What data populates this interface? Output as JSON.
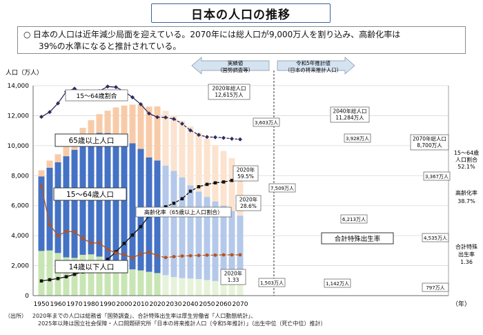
{
  "page": {
    "title": "日本の人口の推移",
    "summary_bullet": "○",
    "summary_line1": "日本の人口は近年減少局面を迎えている。2070年には総人口が9,000万人を割り込み、高齢化率は",
    "summary_line2": "39%の水準になると推計されている。",
    "source_tag": "（出所）",
    "source_line1": "2020年までの人口は総務省「国勢調査」、合計特殊出生率は厚生労働省「人口動態統計」、",
    "source_line2": "2025年以降は国立社会保障・人口問題研究所「日本の将来推計人口（令和5年推計）」（出生中位（死亡中位）推計）"
  },
  "colors": {
    "young": "#c8e6b4",
    "young_future": "#e6f3da",
    "working": "#4472c4",
    "working_future": "#b4c8ea",
    "elderly": "#f8cba8",
    "elderly_future": "#fbe3cf",
    "working_ratio_line": "#2e2b5e",
    "aging_rate_line": "#111111",
    "tfr_line": "#b5531e",
    "arrow_fill": "#d5e3f0"
  },
  "chart_data": {
    "type": "bar",
    "subtype": "stacked bar with three line series",
    "ylabel": "人口（万人）",
    "xlabel_unit": "（年）",
    "ylim": [
      0,
      14000
    ],
    "yticks": [
      "0",
      "2,000",
      "4,000",
      "6,000",
      "8,000",
      "10,000",
      "12,000",
      "14,000"
    ],
    "xticks": [
      "1950",
      "1960",
      "1970",
      "1980",
      "1990",
      "2000",
      "2010",
      "2020",
      "2030",
      "2040",
      "2050",
      "2060",
      "2070"
    ],
    "x": [
      1950,
      1955,
      1960,
      1965,
      1970,
      1975,
      1980,
      1985,
      1990,
      1995,
      2000,
      2005,
      2010,
      2015,
      2020,
      2025,
      2030,
      2035,
      2040,
      2045,
      2050,
      2055,
      2060,
      2065,
      2070
    ],
    "projection_start": 2025,
    "series": [
      {
        "name": "14歳以下人口",
        "values": [
          2979,
          3012,
          2843,
          2553,
          2515,
          2722,
          2751,
          2603,
          2249,
          2001,
          1847,
          1752,
          1680,
          1589,
          1503,
          1363,
          1240,
          1169,
          1142,
          1103,
          1041,
          974,
          923,
          847,
          797
        ]
      },
      {
        "name": "15～64歳人口",
        "values": [
          4966,
          5517,
          6047,
          6744,
          7212,
          7581,
          7883,
          8251,
          8590,
          8716,
          8622,
          8409,
          8103,
          7629,
          7509,
          7310,
          7076,
          6722,
          6213,
          5832,
          5540,
          5307,
          5078,
          4809,
          4535
        ]
      },
      {
        "name": "65歳以上人口",
        "values": [
          411,
          475,
          535,
          618,
          733,
          887,
          1065,
          1247,
          1493,
          1828,
          2204,
          2576,
          2948,
          3387,
          3603,
          3653,
          3696,
          3773,
          3928,
          3945,
          3888,
          3756,
          3644,
          3513,
          3367
        ]
      }
    ],
    "line_series": [
      {
        "name": "15～64歳割合",
        "values": [
          59.6,
          61.2,
          64.1,
          68.0,
          69.0,
          67.7,
          67.4,
          68.2,
          69.7,
          69.5,
          68.1,
          66.1,
          63.8,
          60.7,
          59.5,
          59.4,
          58.9,
          57.3,
          55.1,
          53.6,
          52.9,
          52.8,
          52.6,
          52.3,
          52.1
        ]
      },
      {
        "name": "高齢化率（65歳以上人口割合）",
        "values": [
          4.9,
          5.3,
          5.7,
          6.3,
          7.1,
          7.9,
          9.1,
          10.3,
          12.1,
          14.6,
          17.4,
          20.2,
          23.0,
          26.6,
          28.6,
          29.6,
          30.8,
          32.3,
          34.8,
          36.3,
          37.1,
          37.6,
          37.9,
          38.4,
          38.7
        ]
      },
      {
        "name": "合計特殊出生率",
        "values": [
          3.65,
          2.37,
          2.0,
          2.14,
          2.13,
          1.91,
          1.75,
          1.76,
          1.54,
          1.42,
          1.36,
          1.26,
          1.39,
          1.45,
          1.33,
          1.27,
          1.3,
          1.32,
          1.33,
          1.34,
          1.35,
          1.35,
          1.36,
          1.36,
          1.36
        ]
      }
    ],
    "annotations": {
      "actual_label1": "実績値",
      "actual_label2": "（国勢調査等）",
      "proj_label1": "令和5年推計値",
      "proj_label2": "（日本の将来推計人口）",
      "total2020_1": "2020年総人口",
      "total2020_2": "12,615万人",
      "total2040_1": "2040年総人口",
      "total2040_2": "11,284万人",
      "total2070_1": "2070年総人口",
      "total2070_2": "8,700万人",
      "elderly2020": "3,603万人",
      "elderly2040": "3,928万人",
      "elderly2070": "3,367万人",
      "working2020": "7,509万人",
      "working2040": "6,213万人",
      "working2070": "4,535万人",
      "young2020": "1,503万人",
      "young2040": "1,142万人",
      "young2070": "797万人",
      "ratio2020_1": "2020年",
      "ratio2020_2": "59.5%",
      "aging2020_1": "2020年",
      "aging2020_2": "28.6%",
      "tfr2020_1": "2020年",
      "tfr2020_2": "1.33",
      "lbl_working_ratio": "15～64歳割合",
      "lbl_elderly": "65歳以上人口",
      "lbl_working": "15～64歳人口",
      "lbl_young": "14歳以下人口",
      "lbl_aging": "高齢化率（65歳以上人口割合）",
      "lbl_tfr": "合計特殊出生率",
      "r_ratio1": "15～64歳",
      "r_ratio2": "人口割合",
      "r_ratio3": "52.1%",
      "r_aging1": "高齢化率",
      "r_aging2": "38.7%",
      "r_tfr1": "合計特殊",
      "r_tfr2": "出生率",
      "r_tfr3": "1.36"
    }
  }
}
